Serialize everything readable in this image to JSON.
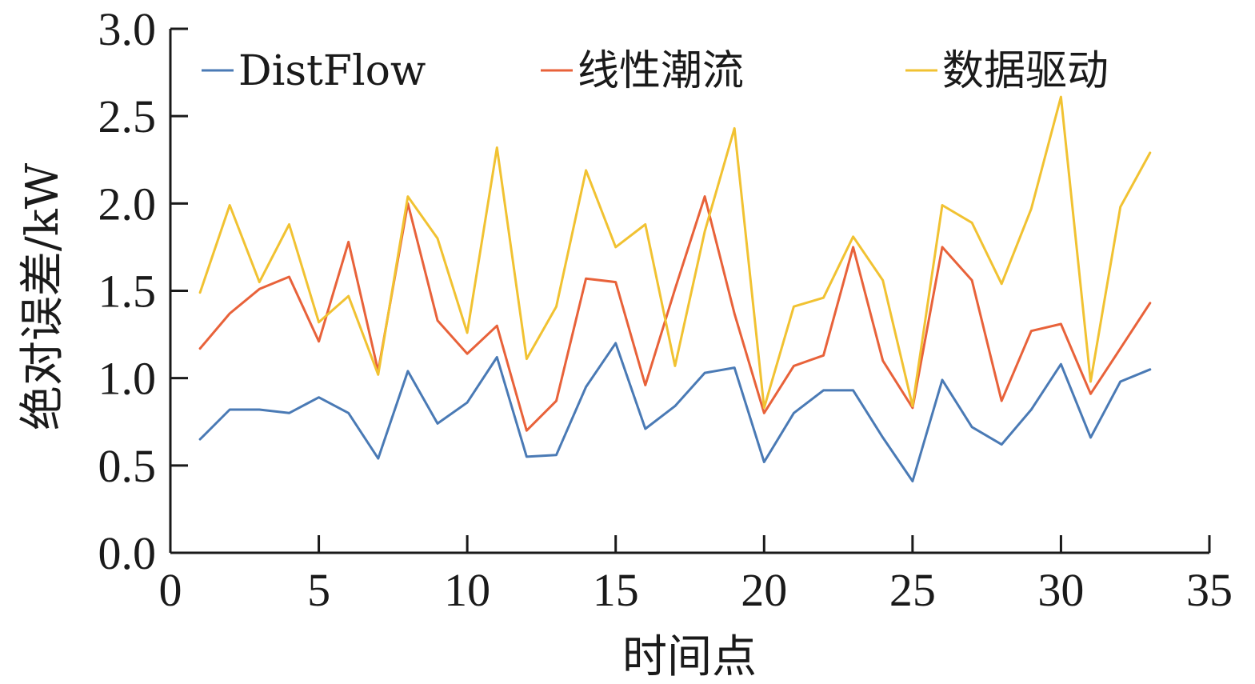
{
  "chart_data": {
    "type": "line",
    "title": "",
    "xlabel": "时间点",
    "ylabel": "绝对误差/kW",
    "xlim": [
      0,
      35
    ],
    "ylim": [
      0,
      3.0
    ],
    "xticks": [
      0,
      5,
      10,
      15,
      20,
      25,
      30,
      35
    ],
    "yticks": [
      0.0,
      0.5,
      1.0,
      1.5,
      2.0,
      2.5,
      3.0
    ],
    "xtick_labels": [
      "0",
      "5",
      "10",
      "15",
      "20",
      "25",
      "30",
      "35"
    ],
    "ytick_labels": [
      "0.0",
      "0.5",
      "1.0",
      "1.5",
      "2.0",
      "2.5",
      "3.0"
    ],
    "grid": false,
    "legend_position": "top",
    "x": [
      1,
      2,
      3,
      4,
      5,
      6,
      7,
      8,
      9,
      10,
      11,
      12,
      13,
      14,
      15,
      16,
      17,
      18,
      19,
      20,
      21,
      22,
      23,
      24,
      25,
      26,
      27,
      28,
      29,
      30,
      31,
      32,
      33
    ],
    "series": [
      {
        "name": "DistFlow",
        "color": "#4a7ab5",
        "values": [
          0.65,
          0.82,
          0.82,
          0.8,
          0.89,
          0.8,
          0.54,
          1.04,
          0.74,
          0.86,
          1.12,
          0.55,
          0.56,
          0.95,
          1.2,
          0.71,
          0.84,
          1.03,
          1.06,
          0.52,
          0.8,
          0.93,
          0.93,
          0.66,
          0.41,
          0.99,
          0.72,
          0.62,
          0.82,
          1.08,
          0.66,
          0.98,
          1.05
        ]
      },
      {
        "name": "线性潮流",
        "color": "#e8623a",
        "values": [
          1.17,
          1.37,
          1.51,
          1.58,
          1.21,
          1.78,
          1.04,
          2.0,
          1.33,
          1.14,
          1.3,
          0.7,
          0.87,
          1.57,
          1.55,
          0.96,
          1.51,
          2.04,
          1.37,
          0.8,
          1.07,
          1.13,
          1.75,
          1.1,
          0.83,
          1.75,
          1.56,
          0.87,
          1.27,
          1.31,
          0.91,
          1.17,
          1.43
        ]
      },
      {
        "name": "数据驱动",
        "color": "#f1c232",
        "values": [
          1.49,
          1.99,
          1.55,
          1.88,
          1.32,
          1.47,
          1.02,
          2.04,
          1.8,
          1.26,
          2.32,
          1.11,
          1.41,
          2.19,
          1.75,
          1.88,
          1.07,
          1.84,
          2.43,
          0.83,
          1.41,
          1.46,
          1.81,
          1.56,
          0.84,
          1.99,
          1.89,
          1.54,
          1.97,
          2.61,
          0.98,
          1.98,
          2.29
        ]
      }
    ]
  }
}
